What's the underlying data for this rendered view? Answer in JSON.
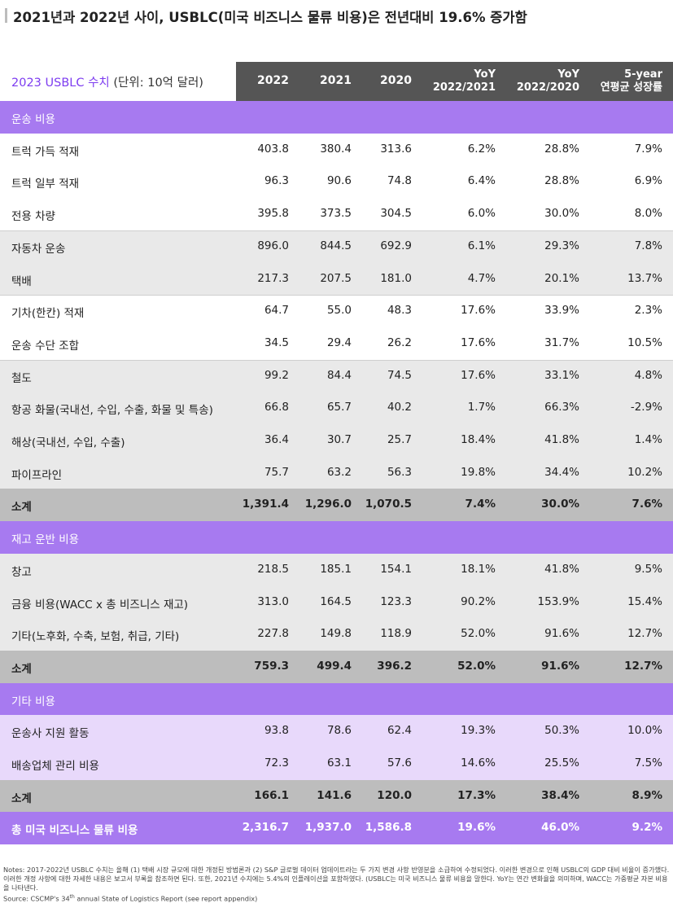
{
  "title": "2021년과 2022년 사이, USBLC(미국 비즈니스 물류 비용)은 전년대비 19.6% 증가함",
  "table": {
    "caption_accent": "2023 USBLC 수치",
    "caption_unit": " (단위: 10억 달러)",
    "headers": [
      {
        "line1": "2022",
        "line2": ""
      },
      {
        "line1": "2021",
        "line2": ""
      },
      {
        "line1": "2020",
        "line2": ""
      },
      {
        "line1": "YoY",
        "line2": "2022/2021"
      },
      {
        "line1": "YoY",
        "line2": "2022/2020"
      },
      {
        "line1": "5-year",
        "line2": "연평균 성장률"
      }
    ],
    "rows": [
      {
        "type": "section",
        "label": "운송 비용",
        "values": []
      },
      {
        "type": "white",
        "label": "트럭 가득 적재",
        "values": [
          "403.8",
          "380.4",
          "313.6",
          "6.2%",
          "28.8%",
          "7.9%"
        ]
      },
      {
        "type": "white",
        "label": "트럭 일부 적재",
        "values": [
          "96.3",
          "90.6",
          "74.8",
          "6.4%",
          "28.8%",
          "6.9%"
        ]
      },
      {
        "type": "white",
        "label": "전용 차량",
        "values": [
          "395.8",
          "373.5",
          "304.5",
          "6.0%",
          "30.0%",
          "8.0%"
        ]
      },
      {
        "type": "grey",
        "label": "자동차 운송",
        "values": [
          "896.0",
          "844.5",
          "692.9",
          "6.1%",
          "29.3%",
          "7.8%"
        ]
      },
      {
        "type": "grey",
        "label": "택배",
        "values": [
          "217.3",
          "207.5",
          "181.0",
          "4.7%",
          "20.1%",
          "13.7%"
        ]
      },
      {
        "type": "white",
        "label": "기차(한칸) 적재",
        "values": [
          "64.7",
          "55.0",
          "48.3",
          "17.6%",
          "33.9%",
          "2.3%"
        ]
      },
      {
        "type": "white",
        "label": "운송 수단 조합",
        "values": [
          "34.5",
          "29.4",
          "26.2",
          "17.6%",
          "31.7%",
          "10.5%"
        ]
      },
      {
        "type": "grey",
        "label": "철도",
        "values": [
          "99.2",
          "84.4",
          "74.5",
          "17.6%",
          "33.1%",
          "4.8%"
        ]
      },
      {
        "type": "grey",
        "label": "항공 화물(국내선, 수입, 수출, 화물 및 특송)",
        "values": [
          "66.8",
          "65.7",
          "40.2",
          "1.7%",
          "66.3%",
          "-2.9%"
        ]
      },
      {
        "type": "grey",
        "label": "해상(국내선, 수입, 수출)",
        "values": [
          "36.4",
          "30.7",
          "25.7",
          "18.4%",
          "41.8%",
          "1.4%"
        ]
      },
      {
        "type": "grey",
        "label": "파이프라인",
        "values": [
          "75.7",
          "63.2",
          "56.3",
          "19.8%",
          "34.4%",
          "10.2%"
        ]
      },
      {
        "type": "subtotal",
        "label": "소계",
        "values": [
          "1,391.4",
          "1,296.0",
          "1,070.5",
          "7.4%",
          "30.0%",
          "7.6%"
        ]
      },
      {
        "type": "section",
        "label": "재고 운반 비용",
        "values": []
      },
      {
        "type": "grey",
        "label": "창고",
        "values": [
          "218.5",
          "185.1",
          "154.1",
          "18.1%",
          "41.8%",
          "9.5%"
        ]
      },
      {
        "type": "grey",
        "label": "금융 비용(WACC x 총 비즈니스 재고)",
        "values": [
          "313.0",
          "164.5",
          "123.3",
          "90.2%",
          "153.9%",
          "15.4%"
        ]
      },
      {
        "type": "grey",
        "label": "기타(노후화, 수축, 보험, 취급, 기타)",
        "values": [
          "227.8",
          "149.8",
          "118.9",
          "52.0%",
          "91.6%",
          "12.7%"
        ]
      },
      {
        "type": "subtotal",
        "label": "소계",
        "values": [
          "759.3",
          "499.4",
          "396.2",
          "52.0%",
          "91.6%",
          "12.7%"
        ]
      },
      {
        "type": "section",
        "label": "기타 비용",
        "values": []
      },
      {
        "type": "lav",
        "label": "운송사 지원 활동",
        "values": [
          "93.8",
          "78.6",
          "62.4",
          "19.3%",
          "50.3%",
          "10.0%"
        ]
      },
      {
        "type": "lav",
        "label": "배송업체 관리 비용",
        "values": [
          "72.3",
          "63.1",
          "57.6",
          "14.6%",
          "25.5%",
          "7.5%"
        ]
      },
      {
        "type": "subtotal",
        "label": "소계",
        "values": [
          "166.1",
          "141.6",
          "120.0",
          "17.3%",
          "38.4%",
          "8.9%"
        ]
      },
      {
        "type": "total",
        "label": "총 미국 비즈니스 물류 비용",
        "values": [
          "2,316.7",
          "1,937.0",
          "1,586.8",
          "19.6%",
          "46.0%",
          "9.2%"
        ]
      }
    ]
  },
  "notes": {
    "line1": "Notes: 2017-2022년 USBLC 수치는 올해 (1) 택배 시장 규모에 대한 개정된 방법론과 (2) S&P 글로벌 데이터 업데이트라는 두 가지 변경 사항 반영분을 소급하여 수정되었다. 이러한 변경으로 인해 USBLC의 GDP 대비 비율이 증가했다. 이러한 개정 사항에 대한 자세한 내용은 보고서 부록을 참조하면 된다. 또한, 2021년 수치에는 5.4%의 인플레이션을 포함하였다. (USBLC는 미국 비즈니스 물류 비용을 말한다. YoY는 연간 변화율을 의미하며, WACC는 가중평균 자본 비용을 나타낸다.",
    "source_prefix": "Source: CSCMP's 34",
    "source_sup": "th",
    "source_suffix": " annual State of Logistics Report (see report appendix)"
  }
}
